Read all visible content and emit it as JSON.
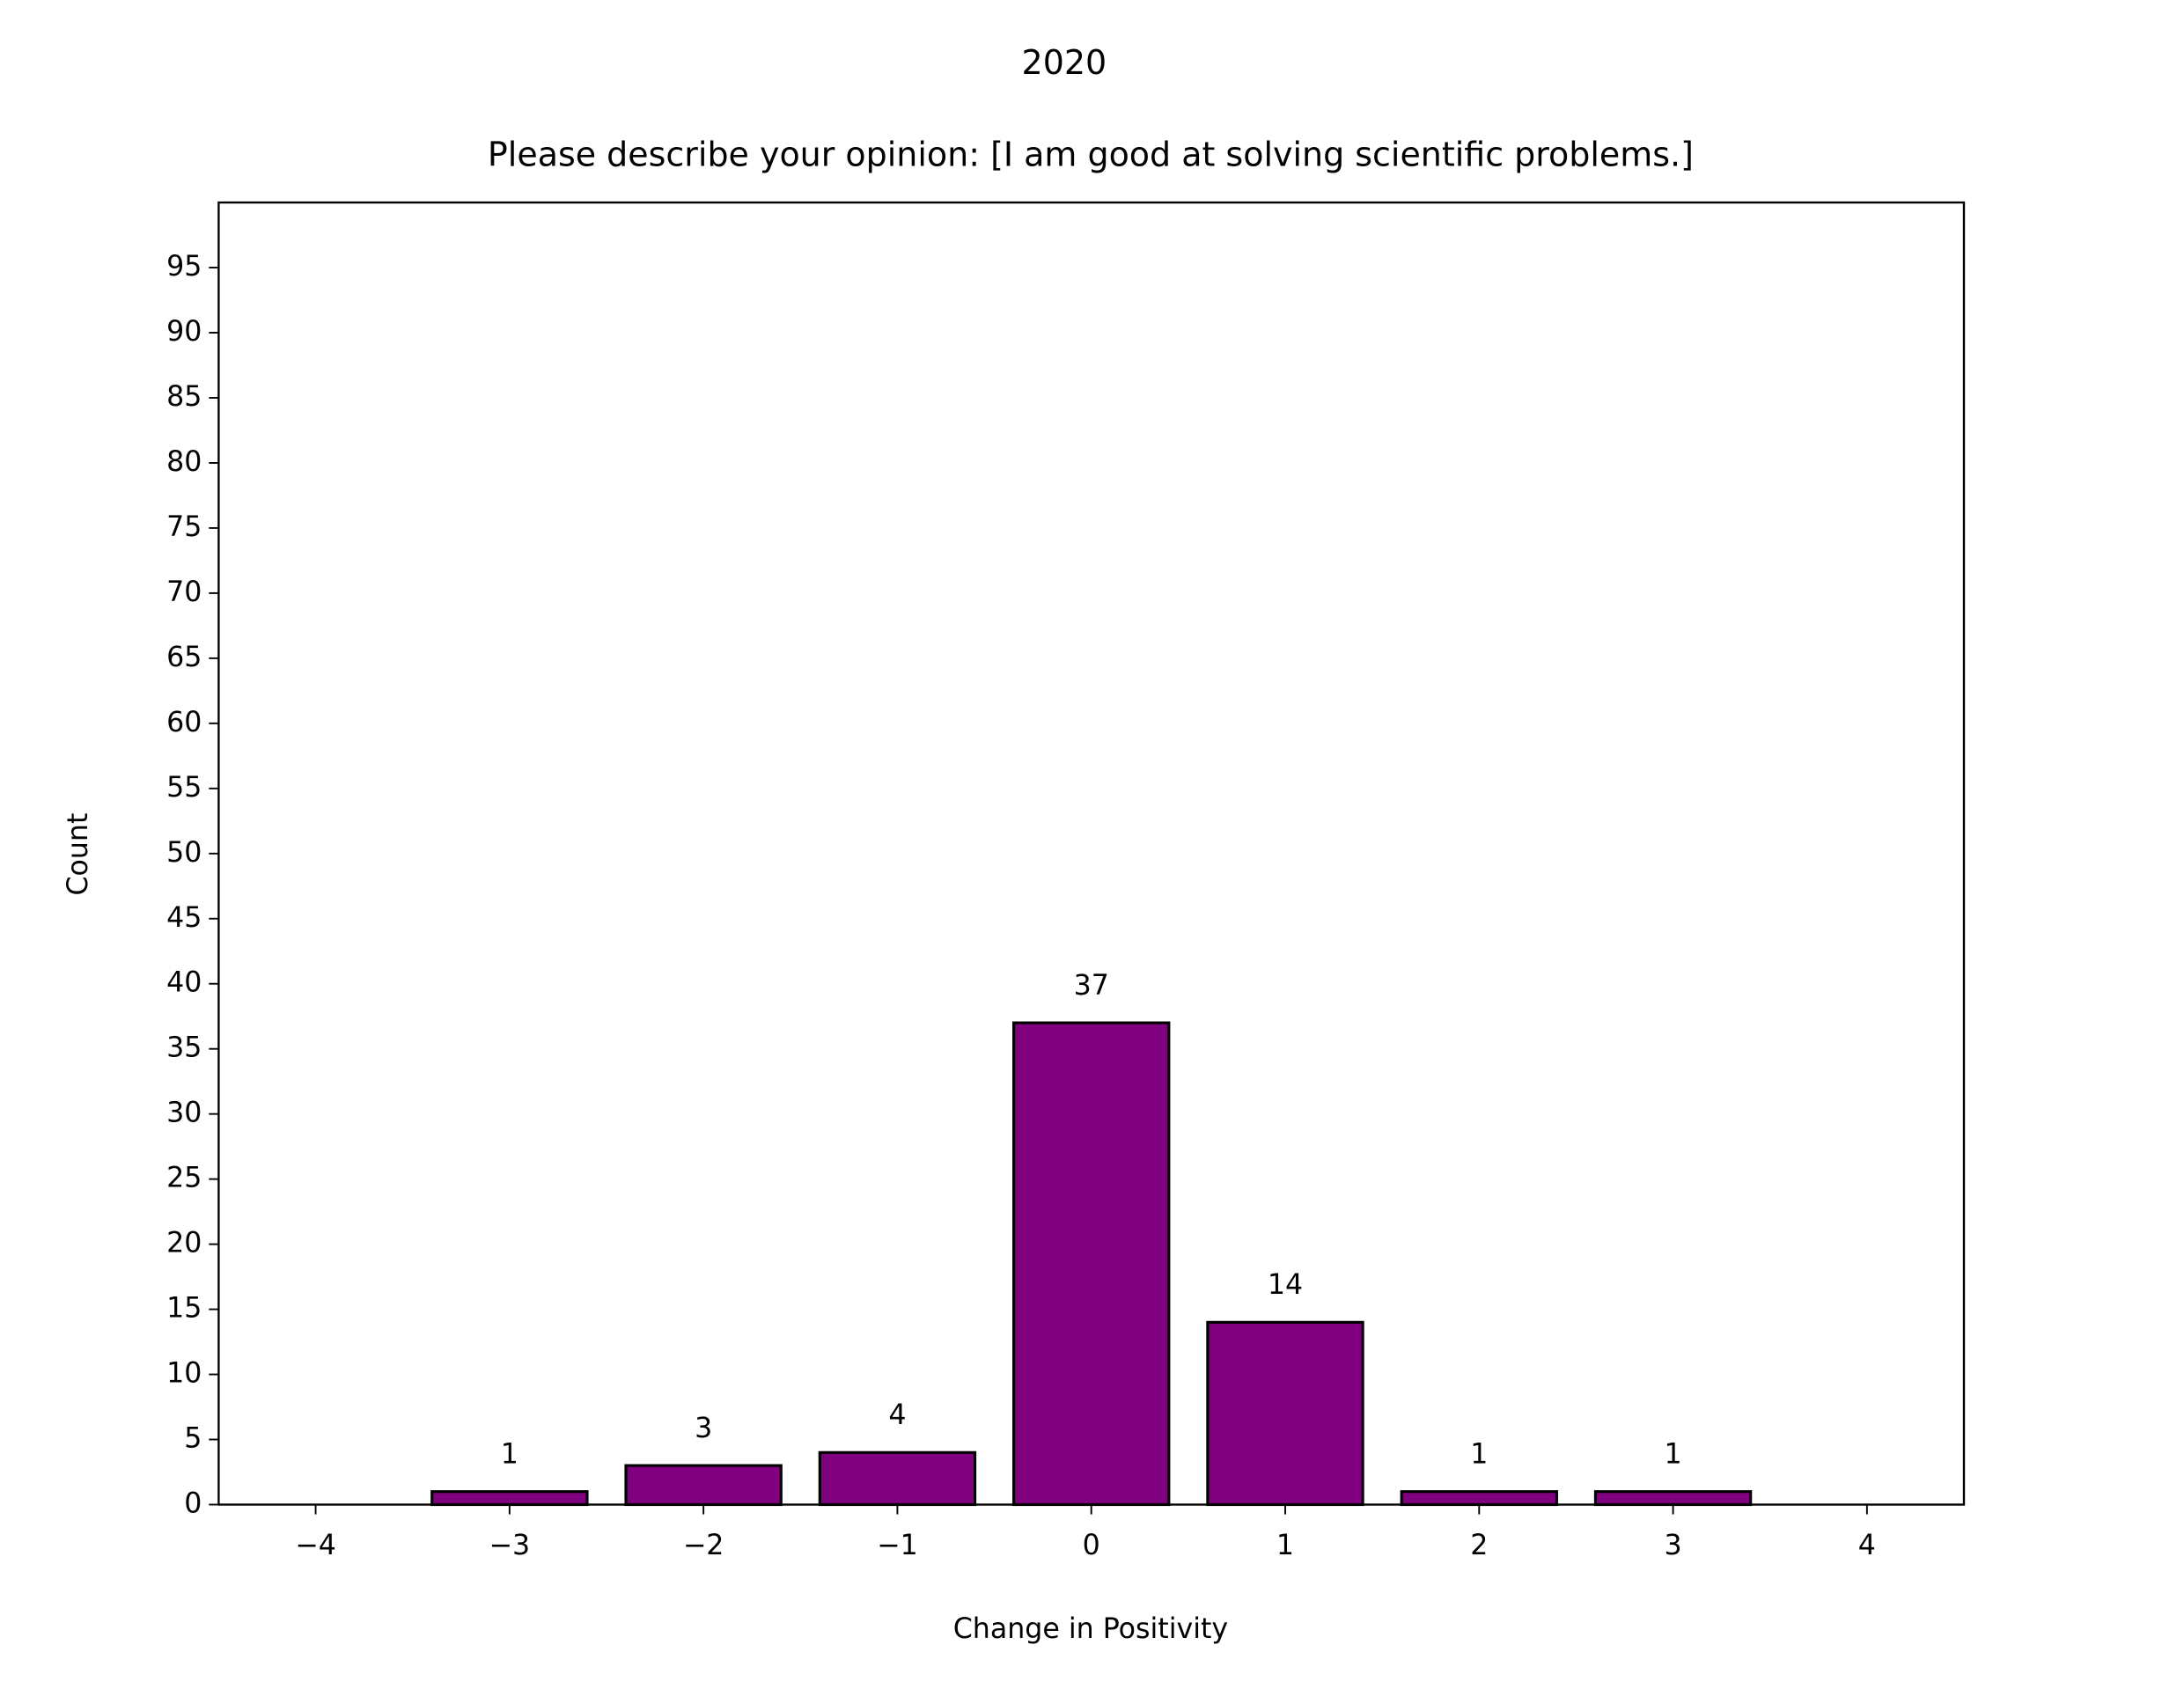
{
  "chart_data": {
    "type": "bar",
    "suptitle": "2020",
    "title": "Please describe your opinion: [I am good at solving scientific problems.]",
    "x_label": "Change in Positivity",
    "y_label": "Count",
    "x": [
      -3,
      -2,
      -1,
      0,
      1,
      2,
      3
    ],
    "values": [
      1,
      3,
      4,
      37,
      14,
      1,
      1
    ],
    "color": "#800080",
    "edgecolor": "#000000",
    "xlim": [
      -4.5,
      4.5
    ],
    "xticks": [
      {
        "value": -4,
        "label": "−4"
      },
      {
        "value": -3,
        "label": "−3"
      },
      {
        "value": -2,
        "label": "−2"
      },
      {
        "value": -1,
        "label": "−1"
      },
      0,
      1,
      2,
      3,
      4
    ],
    "ylim": [
      0,
      100
    ],
    "yticks": [
      0,
      5,
      10,
      15,
      20,
      25,
      30,
      35,
      40,
      45,
      50,
      55,
      60,
      65,
      70,
      75,
      80,
      85,
      90,
      95
    ],
    "grid": false
  }
}
